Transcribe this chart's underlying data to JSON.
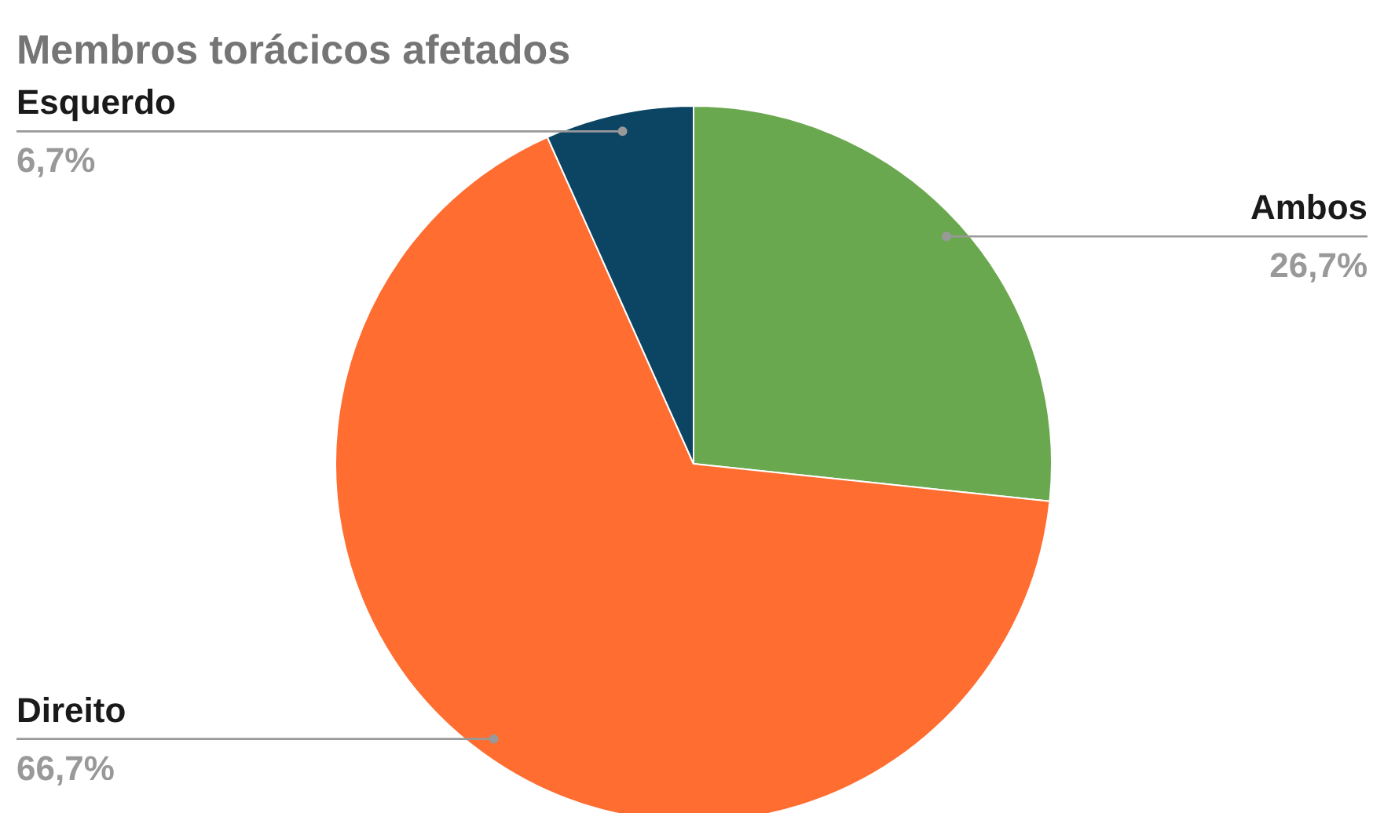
{
  "chart_data": {
    "type": "pie",
    "title": "Membros torácicos afetados",
    "categories": [
      "Ambos",
      "Direito",
      "Esquerdo"
    ],
    "values": [
      26.7,
      66.7,
      6.7
    ],
    "colors": [
      "#6aa84f",
      "#ff6d31",
      "#0b4563"
    ],
    "value_labels": [
      "26,7%",
      "66,7%",
      "6,7%"
    ]
  }
}
